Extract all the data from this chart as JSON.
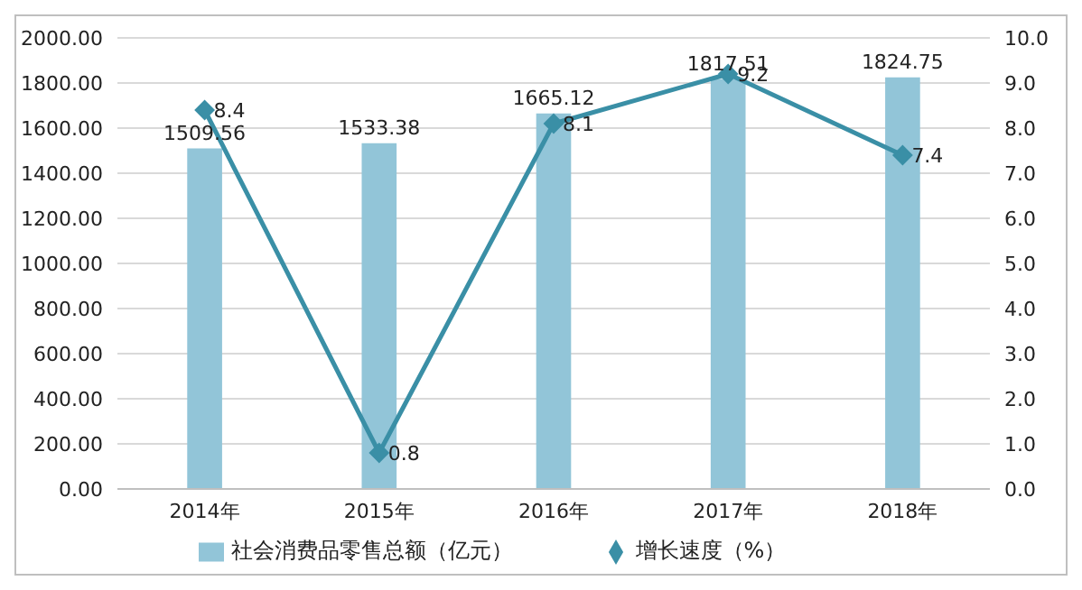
{
  "chart_data": {
    "type": "bar",
    "categories": [
      "2014年",
      "2015年",
      "2016年",
      "2017年",
      "2018年"
    ],
    "series": [
      {
        "name": "社会消费品零售总额（亿元）",
        "color": "#92c5d8",
        "values": [
          1509.56,
          1533.38,
          1665.12,
          1817.51,
          1824.75
        ]
      },
      {
        "name": "增长速度（%）",
        "type": "line",
        "axis": "y2",
        "color": "#3a8fa6",
        "values": [
          8.4,
          0.8,
          8.1,
          9.2,
          7.4
        ]
      }
    ],
    "ylim": [
      0,
      2000
    ],
    "yticks": [
      {
        "value": 0,
        "label": "0.00"
      },
      {
        "value": 200,
        "label": "200.00"
      },
      {
        "value": 400,
        "label": "400.00"
      },
      {
        "value": 600,
        "label": "600.00"
      },
      {
        "value": 800,
        "label": "800.00"
      },
      {
        "value": 1000,
        "label": "1000.00"
      },
      {
        "value": 1200,
        "label": "1200.00"
      },
      {
        "value": 1400,
        "label": "1400.00"
      },
      {
        "value": 1600,
        "label": "1600.00"
      },
      {
        "value": 1800,
        "label": "1800.00"
      },
      {
        "value": 2000,
        "label": "2000.00"
      }
    ],
    "y2lim": [
      0,
      10
    ],
    "y2ticks": [
      {
        "value": 0,
        "label": "0.0"
      },
      {
        "value": 1,
        "label": "1.0"
      },
      {
        "value": 2,
        "label": "2.0"
      },
      {
        "value": 3,
        "label": "3.0"
      },
      {
        "value": 4,
        "label": "4.0"
      },
      {
        "value": 5,
        "label": "5.0"
      },
      {
        "value": 6,
        "label": "6.0"
      },
      {
        "value": 7,
        "label": "7.0"
      },
      {
        "value": 8,
        "label": "8.0"
      },
      {
        "value": 9,
        "label": "9.0"
      },
      {
        "value": 10,
        "label": "10.0"
      }
    ],
    "grid": "y",
    "legend": "bottom",
    "marker": "diamond",
    "line_style": "solid",
    "data_labels": true
  }
}
